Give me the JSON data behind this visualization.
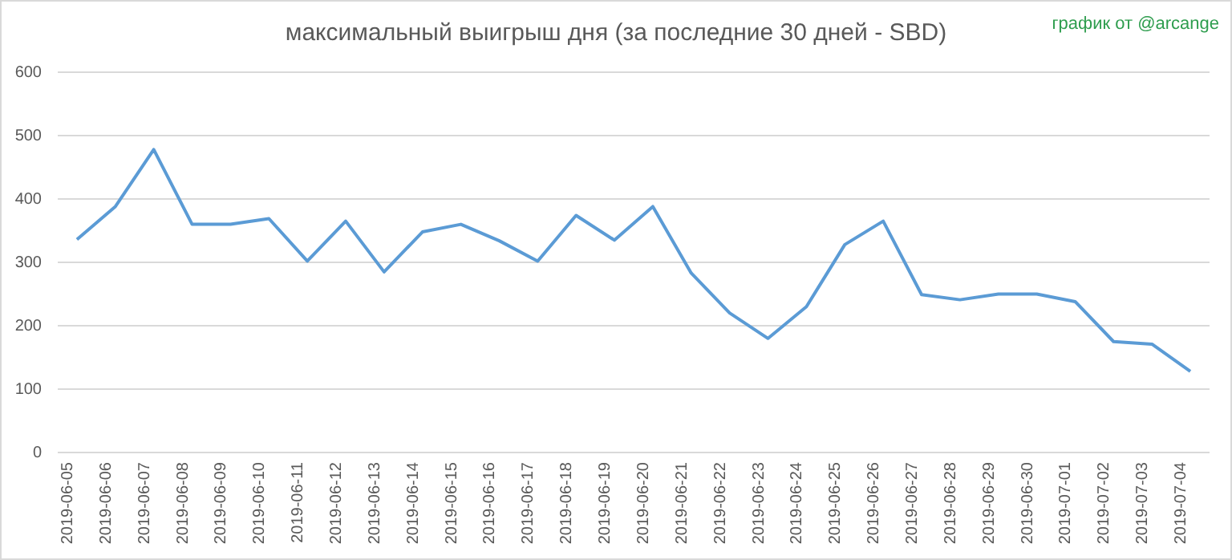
{
  "chart_data": {
    "type": "line",
    "title": "максимальный выигрыш дня (за последние 30 дней - SBD)",
    "annotations": [
      "график от @arcange"
    ],
    "categories": [
      "2019-06-05",
      "2019-06-06",
      "2019-06-07",
      "2019-06-08",
      "2019-06-09",
      "2019-06-10",
      "2019-06-11",
      "2019-06-12",
      "2019-06-13",
      "2019-06-14",
      "2019-06-15",
      "2019-06-16",
      "2019-06-17",
      "2019-06-18",
      "2019-06-19",
      "2019-06-20",
      "2019-06-21",
      "2019-06-22",
      "2019-06-23",
      "2019-06-24",
      "2019-06-25",
      "2019-06-26",
      "2019-06-27",
      "2019-06-28",
      "2019-06-29",
      "2019-06-30",
      "2019-07-01",
      "2019-07-02",
      "2019-07-03",
      "2019-07-04"
    ],
    "series": [
      {
        "color": "#5b9bd5",
        "values": [
          336,
          388,
          478,
          360,
          360,
          369,
          302,
          365,
          285,
          348,
          360,
          334,
          302,
          374,
          335,
          388,
          283,
          220,
          180,
          230,
          328,
          365,
          249,
          241,
          250,
          250,
          238,
          175,
          171,
          128
        ]
      }
    ],
    "ylim": [
      0,
      600
    ],
    "yticks": [
      0,
      100,
      200,
      300,
      400,
      500,
      600
    ],
    "grid": "y",
    "marker": "none",
    "line_style": "solid"
  }
}
